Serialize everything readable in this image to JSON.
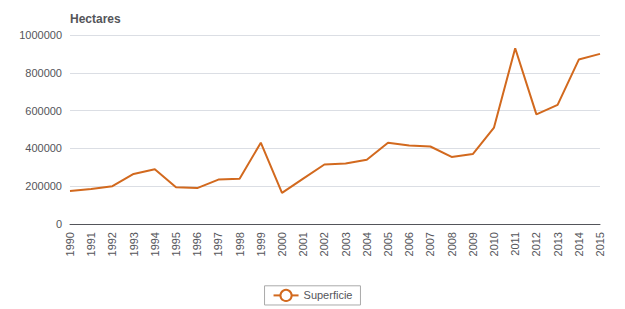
{
  "chart_data": {
    "type": "line",
    "ylabel": "Hectares",
    "x": [
      1990,
      1991,
      1992,
      1993,
      1994,
      1995,
      1996,
      1997,
      1998,
      1999,
      2000,
      2001,
      2002,
      2003,
      2004,
      2005,
      2006,
      2007,
      2008,
      2009,
      2010,
      2011,
      2012,
      2013,
      2014,
      2015
    ],
    "series": [
      {
        "name": "Superficie",
        "color": "#D2691E",
        "values": [
          175000,
          185000,
          200000,
          265000,
          290000,
          195000,
          190000,
          235000,
          240000,
          430000,
          165000,
          240000,
          315000,
          320000,
          340000,
          430000,
          415000,
          410000,
          355000,
          370000,
          510000,
          930000,
          580000,
          630000,
          870000,
          900000
        ]
      }
    ],
    "xlim": [
      1990,
      2015
    ],
    "xticks": [
      1990,
      1991,
      1992,
      1993,
      1994,
      1995,
      1996,
      1997,
      1998,
      1999,
      2000,
      2001,
      2002,
      2003,
      2004,
      2005,
      2006,
      2007,
      2008,
      2009,
      2010,
      2011,
      2012,
      2013,
      2014,
      2015
    ],
    "ylim": [
      0,
      1000000
    ],
    "yticks": [
      0,
      200000,
      400000,
      600000,
      800000,
      1000000
    ],
    "grid": true,
    "legend": "bottom"
  }
}
